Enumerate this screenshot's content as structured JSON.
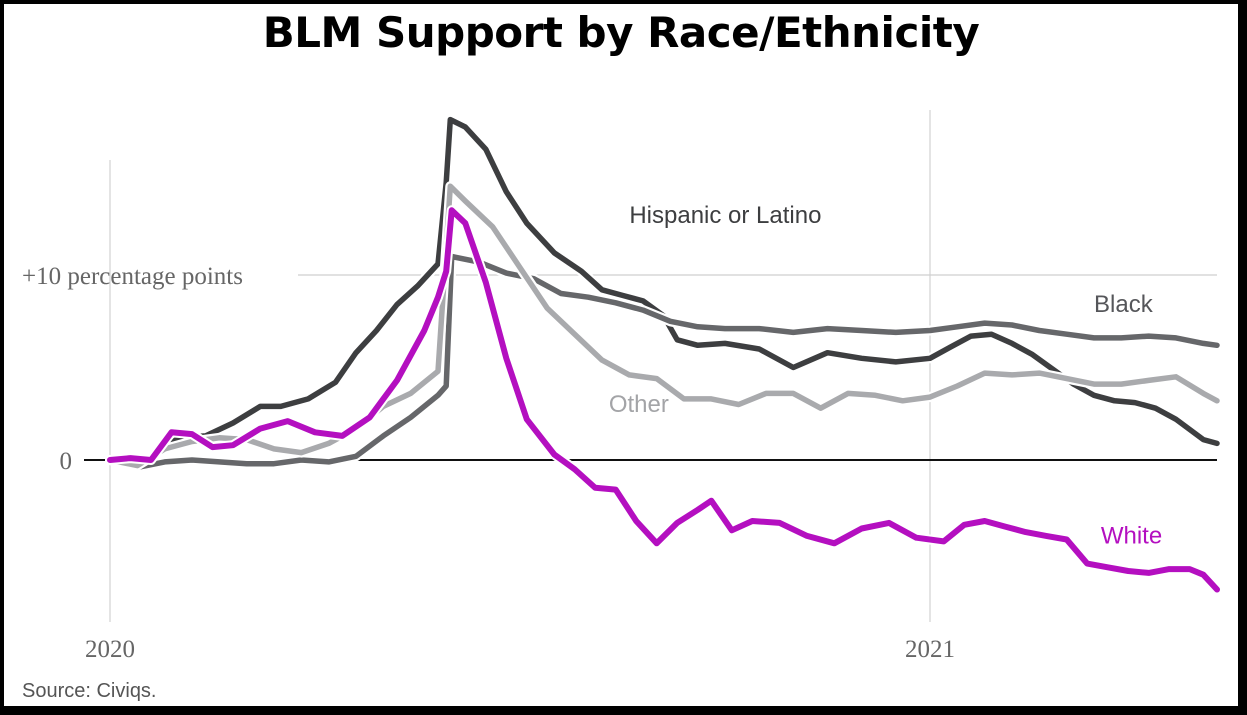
{
  "chart_data": {
    "type": "line",
    "title": "BLM Support by Race/Ethnicity",
    "source": "Source: Civiqs.",
    "xlabel": "",
    "ylabel": "",
    "x_unit": "months since Jan 2020",
    "xlim": [
      0,
      16.2
    ],
    "ylim": [
      -9,
      19
    ],
    "x_ticks": [
      {
        "value": 0,
        "label": "2020"
      },
      {
        "value": 12,
        "label": "2021"
      }
    ],
    "y_ticks": [
      {
        "value": 0,
        "label": "0"
      },
      {
        "value": 10,
        "label": "+10 percentage points"
      }
    ],
    "grid": true,
    "series": [
      {
        "name": "Hispanic or Latino",
        "label": "Hispanic or Latino",
        "color": "#3d3e40",
        "x": [
          0,
          0.35,
          0.7,
          1.0,
          1.4,
          1.8,
          2.2,
          2.5,
          2.9,
          3.3,
          3.6,
          3.9,
          4.2,
          4.5,
          4.8,
          4.92,
          4.98,
          5.2,
          5.5,
          5.8,
          6.1,
          6.5,
          6.9,
          7.2,
          7.5,
          7.8,
          8.1,
          8.3,
          8.6,
          9.0,
          9.5,
          10.0,
          10.5,
          11.0,
          11.5,
          12.0,
          12.3,
          12.6,
          12.9,
          13.2,
          13.5,
          13.8,
          14.1,
          14.4,
          14.7,
          15.0,
          15.3,
          15.6,
          16.0,
          16.2
        ],
        "values": [
          0,
          -0.3,
          0.3,
          1.2,
          1.3,
          2.0,
          2.9,
          2.9,
          3.3,
          4.2,
          5.8,
          7.0,
          8.4,
          9.4,
          10.6,
          15.0,
          18.4,
          18.0,
          16.8,
          14.5,
          12.8,
          11.2,
          10.2,
          9.2,
          8.9,
          8.6,
          7.8,
          6.5,
          6.2,
          6.3,
          6.0,
          5.0,
          5.8,
          5.5,
          5.3,
          5.5,
          6.1,
          6.7,
          6.8,
          6.3,
          5.7,
          4.9,
          4.1,
          3.5,
          3.2,
          3.1,
          2.8,
          2.2,
          1.1,
          0.9
        ]
      },
      {
        "name": "Black",
        "label": "Black",
        "color": "#66676a",
        "x": [
          0,
          0.4,
          0.8,
          1.2,
          1.6,
          2.0,
          2.4,
          2.8,
          3.2,
          3.6,
          4.0,
          4.4,
          4.8,
          4.92,
          5.0,
          5.4,
          5.8,
          6.2,
          6.6,
          7.0,
          7.4,
          7.8,
          8.2,
          8.6,
          9.0,
          9.5,
          10.0,
          10.5,
          11.0,
          11.5,
          12.0,
          12.4,
          12.8,
          13.2,
          13.6,
          14.0,
          14.4,
          14.8,
          15.2,
          15.6,
          16.0,
          16.2
        ],
        "values": [
          0,
          -0.4,
          -0.1,
          0.0,
          -0.1,
          -0.2,
          -0.2,
          0.0,
          -0.1,
          0.2,
          1.3,
          2.3,
          3.5,
          4.0,
          11.0,
          10.7,
          10.1,
          9.8,
          9.0,
          8.8,
          8.5,
          8.1,
          7.5,
          7.2,
          7.1,
          7.1,
          6.9,
          7.1,
          7.0,
          6.9,
          7.0,
          7.2,
          7.4,
          7.3,
          7.0,
          6.8,
          6.6,
          6.6,
          6.7,
          6.6,
          6.3,
          6.2
        ]
      },
      {
        "name": "Other",
        "label": "Other",
        "color": "#a9aaad",
        "x": [
          0,
          0.4,
          0.8,
          1.2,
          1.6,
          2.0,
          2.4,
          2.8,
          3.2,
          3.6,
          4.0,
          4.4,
          4.8,
          4.98,
          5.2,
          5.6,
          6.0,
          6.4,
          6.8,
          7.2,
          7.6,
          8.0,
          8.4,
          8.8,
          9.2,
          9.6,
          10.0,
          10.4,
          10.8,
          11.2,
          11.6,
          12.0,
          12.4,
          12.8,
          13.2,
          13.6,
          14.0,
          14.4,
          14.8,
          15.2,
          15.6,
          16.0,
          16.2
        ],
        "values": [
          0,
          -0.3,
          0.6,
          1.0,
          1.2,
          1.1,
          0.6,
          0.4,
          0.9,
          1.7,
          2.9,
          3.6,
          4.8,
          14.8,
          14.0,
          12.6,
          10.4,
          8.2,
          6.8,
          5.4,
          4.6,
          4.4,
          3.3,
          3.3,
          3.0,
          3.6,
          3.6,
          2.8,
          3.6,
          3.5,
          3.2,
          3.4,
          4.0,
          4.7,
          4.6,
          4.7,
          4.4,
          4.1,
          4.1,
          4.3,
          4.5,
          3.6,
          3.2
        ]
      },
      {
        "name": "White",
        "label": "White",
        "color": "#b40fc0",
        "x": [
          0,
          0.3,
          0.6,
          0.9,
          1.2,
          1.5,
          1.8,
          2.2,
          2.6,
          3.0,
          3.4,
          3.8,
          4.2,
          4.6,
          4.8,
          4.92,
          5.0,
          5.2,
          5.5,
          5.8,
          6.1,
          6.5,
          6.8,
          7.1,
          7.4,
          7.7,
          8.0,
          8.3,
          8.6,
          8.8,
          9.1,
          9.4,
          9.8,
          10.2,
          10.6,
          11.0,
          11.4,
          11.8,
          12.2,
          12.5,
          12.8,
          13.1,
          13.4,
          13.7,
          14.0,
          14.3,
          14.6,
          14.9,
          15.2,
          15.5,
          15.8,
          16.0,
          16.2
        ],
        "values": [
          0,
          0.1,
          0.0,
          1.5,
          1.4,
          0.7,
          0.8,
          1.7,
          2.1,
          1.5,
          1.3,
          2.3,
          4.3,
          7.0,
          8.8,
          10.2,
          13.5,
          12.8,
          9.6,
          5.5,
          2.2,
          0.3,
          -0.5,
          -1.5,
          -1.6,
          -3.3,
          -4.5,
          -3.4,
          -2.7,
          -2.2,
          -3.8,
          -3.3,
          -3.4,
          -4.1,
          -4.5,
          -3.7,
          -3.4,
          -4.2,
          -4.4,
          -3.5,
          -3.3,
          -3.6,
          -3.9,
          -4.1,
          -4.3,
          -5.6,
          -5.8,
          -6.0,
          -6.1,
          -5.9,
          -5.9,
          -6.2,
          -7.0
        ]
      }
    ],
    "annotations": [
      {
        "text": "Hispanic or Latino",
        "series": "Hispanic or Latino",
        "x": 7.6,
        "y": 12.8
      },
      {
        "text": "Black",
        "series": "Black",
        "x": 14.4,
        "y": 8.0
      },
      {
        "text": "Other",
        "series": "Other",
        "x": 7.3,
        "y": 2.6
      },
      {
        "text": "White",
        "series": "White",
        "x": 14.5,
        "y": -4.5
      }
    ]
  }
}
